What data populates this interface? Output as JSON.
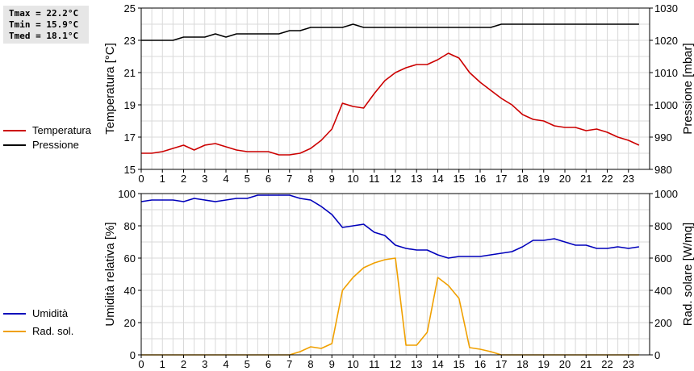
{
  "stats": {
    "tmax": "Tmax = 22.2°C",
    "tmin": "Tmin = 15.9°C",
    "tmed": "Tmed = 18.1°C"
  },
  "legend_top": [
    {
      "label": "Temperatura",
      "color": "#cc0000"
    },
    {
      "label": "Pressione",
      "color": "#000000"
    }
  ],
  "legend_bottom": [
    {
      "label": "Umidità",
      "color": "#0000bb"
    },
    {
      "label": "Rad. sol.",
      "color": "#f0a000"
    }
  ],
  "chart_data": [
    {
      "type": "line",
      "x_ticks": [
        "0",
        "1",
        "2",
        "3",
        "4",
        "5",
        "6",
        "7",
        "8",
        "9",
        "10",
        "11",
        "12",
        "13",
        "14",
        "15",
        "16",
        "17",
        "18",
        "19",
        "20",
        "21",
        "22",
        "23"
      ],
      "xlim": [
        0,
        24
      ],
      "ylabel": "Temperatura [°C]",
      "ylim": [
        15,
        25
      ],
      "y_ticks": [
        "15",
        "17",
        "19",
        "21",
        "23",
        "25"
      ],
      "ylabel_right": "Pressione [mbar]",
      "ylim_right": [
        980,
        1030
      ],
      "y_ticks_right": [
        "980",
        "990",
        "1000",
        "1010",
        "1020",
        "1030"
      ],
      "grid": true,
      "series": [
        {
          "name": "Temperatura",
          "axis": "left",
          "color": "#cc0000",
          "x": [
            0,
            0.5,
            1,
            1.5,
            2,
            2.5,
            3,
            3.5,
            4,
            4.5,
            5,
            5.5,
            6,
            6.5,
            7,
            7.5,
            8,
            8.5,
            9,
            9.5,
            10,
            10.5,
            11,
            11.5,
            12,
            12.5,
            13,
            13.5,
            14,
            14.5,
            15,
            15.5,
            16,
            16.5,
            17,
            17.5,
            18,
            18.5,
            19,
            19.5,
            20,
            20.5,
            21,
            21.5,
            22,
            22.5,
            23,
            23.5
          ],
          "values": [
            16.0,
            16.0,
            16.1,
            16.3,
            16.5,
            16.2,
            16.5,
            16.6,
            16.4,
            16.2,
            16.1,
            16.1,
            16.1,
            15.9,
            15.9,
            16.0,
            16.3,
            16.8,
            17.5,
            19.1,
            18.9,
            18.8,
            19.7,
            20.5,
            21.0,
            21.3,
            21.5,
            21.5,
            21.8,
            22.2,
            21.9,
            21.0,
            20.4,
            19.9,
            19.4,
            19.0,
            18.4,
            18.1,
            18.0,
            17.7,
            17.6,
            17.6,
            17.4,
            17.5,
            17.3,
            17.0,
            16.8,
            16.5
          ]
        },
        {
          "name": "Pressione",
          "axis": "right",
          "color": "#000000",
          "x": [
            0,
            0.5,
            1,
            1.5,
            2,
            2.5,
            3,
            3.5,
            4,
            4.5,
            5,
            5.5,
            6,
            6.5,
            7,
            7.5,
            8,
            8.5,
            9,
            9.5,
            10,
            10.5,
            11,
            11.5,
            12,
            12.5,
            13,
            13.5,
            14,
            14.5,
            15,
            15.5,
            16,
            16.5,
            17,
            17.5,
            18,
            18.5,
            19,
            19.5,
            20,
            20.5,
            21,
            21.5,
            22,
            22.5,
            23,
            23.5
          ],
          "values": [
            1020,
            1020,
            1020,
            1020,
            1021,
            1021,
            1021,
            1022,
            1021,
            1022,
            1022,
            1022,
            1022,
            1022,
            1023,
            1023,
            1024,
            1024,
            1024,
            1024,
            1025,
            1024,
            1024,
            1024,
            1024,
            1024,
            1024,
            1024,
            1024,
            1024,
            1024,
            1024,
            1024,
            1024,
            1025,
            1025,
            1025,
            1025,
            1025,
            1025,
            1025,
            1025,
            1025,
            1025,
            1025,
            1025,
            1025,
            1025
          ]
        }
      ]
    },
    {
      "type": "line",
      "x_ticks": [
        "0",
        "1",
        "2",
        "3",
        "4",
        "5",
        "6",
        "7",
        "8",
        "9",
        "10",
        "11",
        "12",
        "13",
        "14",
        "15",
        "16",
        "17",
        "18",
        "19",
        "20",
        "21",
        "22",
        "23"
      ],
      "xlim": [
        0,
        24
      ],
      "ylabel": "Umidità relativa [%]",
      "ylim": [
        0,
        100
      ],
      "y_ticks": [
        "0",
        "20",
        "40",
        "60",
        "80",
        "100"
      ],
      "ylabel_right": "Rad. solare [W/mq]",
      "ylim_right": [
        0,
        1000
      ],
      "y_ticks_right": [
        "0",
        "200",
        "400",
        "600",
        "800",
        "1000"
      ],
      "grid": true,
      "series": [
        {
          "name": "Umidità",
          "axis": "left",
          "color": "#0000bb",
          "x": [
            0,
            0.5,
            1,
            1.5,
            2,
            2.5,
            3,
            3.5,
            4,
            4.5,
            5,
            5.5,
            6,
            6.5,
            7,
            7.5,
            8,
            8.5,
            9,
            9.5,
            10,
            10.5,
            11,
            11.5,
            12,
            12.5,
            13,
            13.5,
            14,
            14.5,
            15,
            15.5,
            16,
            16.5,
            17,
            17.5,
            18,
            18.5,
            19,
            19.5,
            20,
            20.5,
            21,
            21.5,
            22,
            22.5,
            23,
            23.5
          ],
          "values": [
            95,
            96,
            96,
            96,
            95,
            97,
            96,
            95,
            96,
            97,
            97,
            99,
            99,
            99,
            99,
            97,
            96,
            92,
            87,
            79,
            80,
            81,
            76,
            74,
            68,
            66,
            65,
            65,
            62,
            60,
            61,
            61,
            61,
            62,
            63,
            64,
            67,
            71,
            71,
            72,
            70,
            68,
            68,
            66,
            66,
            67,
            66,
            67
          ]
        },
        {
          "name": "Rad. sol.",
          "axis": "right",
          "color": "#f0a000",
          "x": [
            0,
            0.5,
            1,
            1.5,
            2,
            2.5,
            3,
            3.5,
            4,
            4.5,
            5,
            5.5,
            6,
            6.5,
            7,
            7.5,
            8,
            8.5,
            9,
            9.5,
            10,
            10.5,
            11,
            11.5,
            12,
            12.5,
            13,
            13.5,
            14,
            14.5,
            15,
            15.5,
            16,
            16.5,
            17,
            17.5,
            18,
            18.5,
            19,
            19.5,
            20,
            20.5,
            21,
            21.5,
            22,
            22.5,
            23,
            23.5
          ],
          "values": [
            0,
            0,
            0,
            0,
            0,
            0,
            0,
            0,
            0,
            0,
            0,
            0,
            0,
            0,
            0,
            20,
            50,
            40,
            70,
            400,
            480,
            540,
            570,
            590,
            600,
            60,
            60,
            140,
            480,
            430,
            350,
            45,
            35,
            20,
            0,
            0,
            0,
            0,
            0,
            0,
            0,
            0,
            0,
            0,
            0,
            0,
            0,
            0
          ]
        }
      ]
    }
  ]
}
